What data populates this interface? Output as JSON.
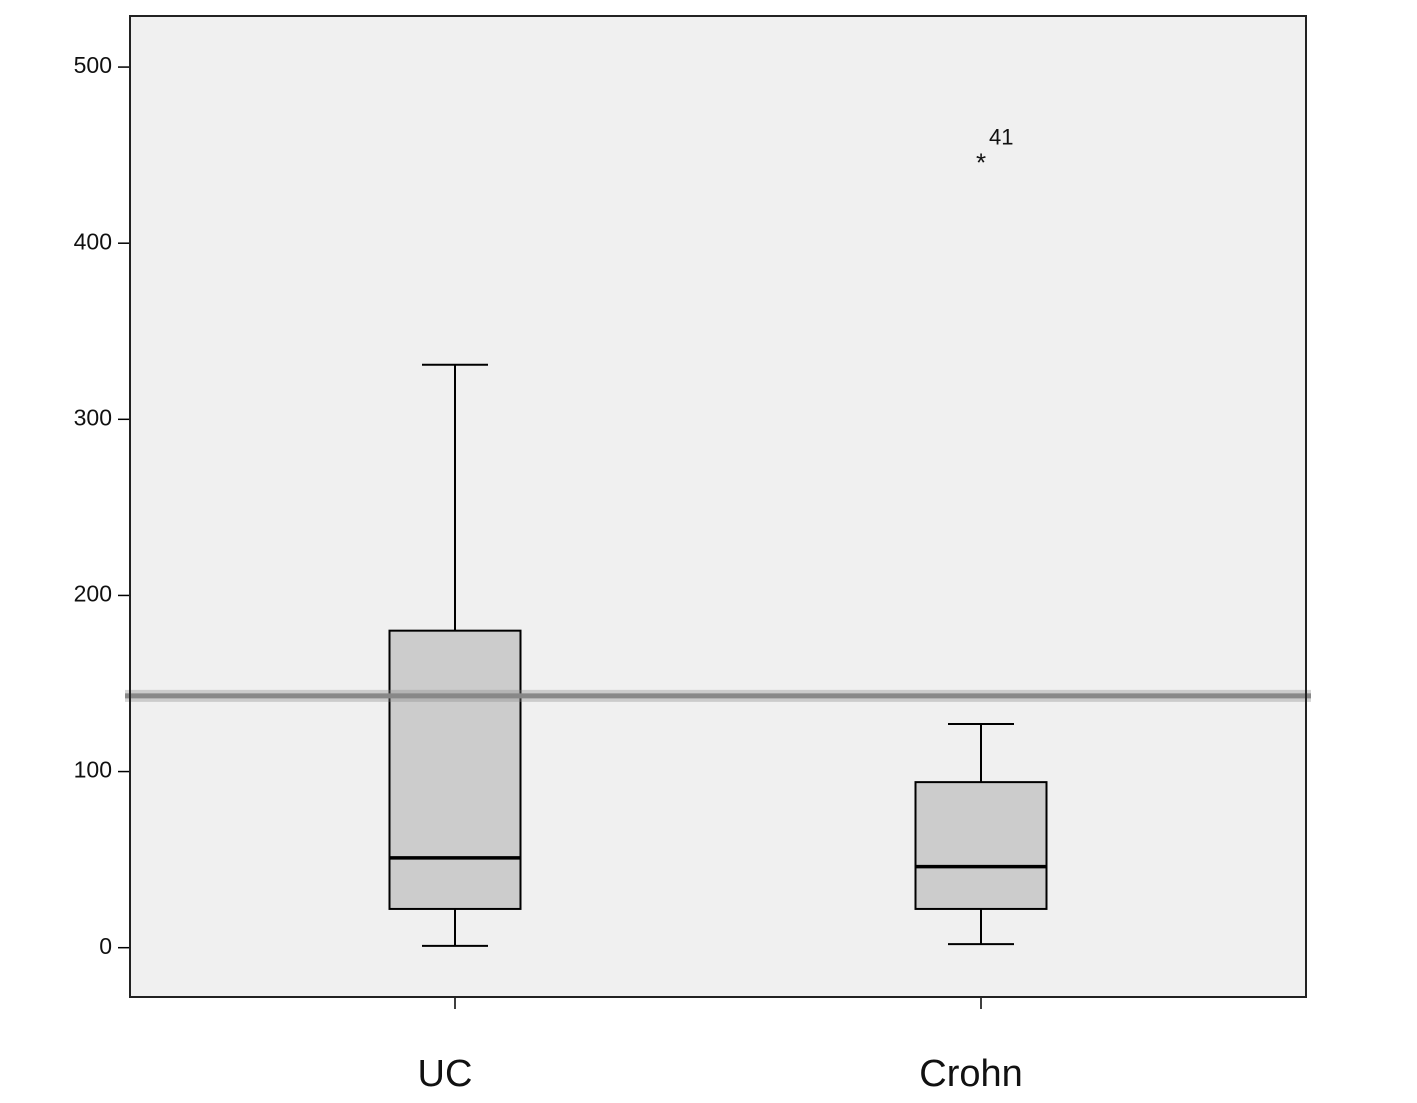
{
  "chart_data": {
    "type": "box",
    "categories": [
      "UC",
      "Crohn"
    ],
    "min": [
      1,
      2
    ],
    "q1": [
      22,
      22
    ],
    "median": [
      51,
      46
    ],
    "q3": [
      180,
      94
    ],
    "max": [
      331,
      127
    ],
    "outliers": [
      [],
      [
        {
          "value": 448,
          "label": "41"
        }
      ]
    ],
    "reference_line": 143,
    "ylim": [
      -28,
      529
    ],
    "yticks": [
      0,
      100,
      200,
      300,
      400,
      500
    ],
    "plot_color": "#f0f0f0",
    "box_color": "#cccccc",
    "reference_color": "#888888"
  }
}
